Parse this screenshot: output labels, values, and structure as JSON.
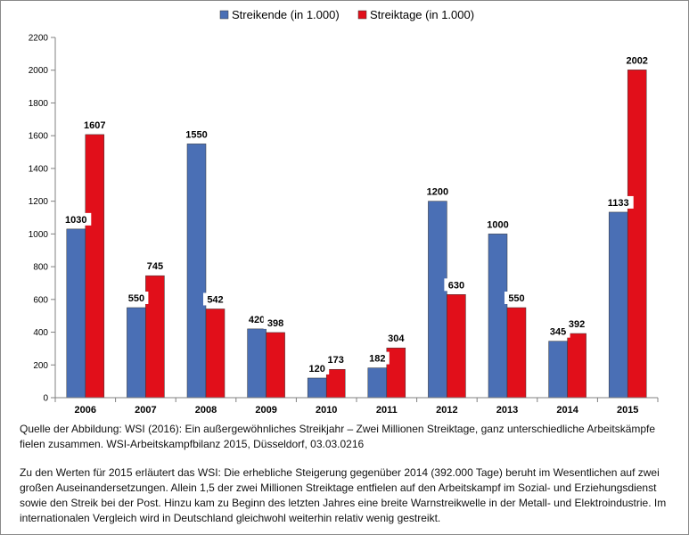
{
  "chart_data": {
    "type": "bar",
    "categories": [
      "2006",
      "2007",
      "2008",
      "2009",
      "2010",
      "2011",
      "2012",
      "2013",
      "2014",
      "2015"
    ],
    "series": [
      {
        "name": "Streikende (in 1.000)",
        "color": "#4a6fb5",
        "values": [
          1030,
          550,
          1550,
          420,
          120,
          182,
          1200,
          1000,
          345,
          1133
        ]
      },
      {
        "name": "Streiktage (in 1.000)",
        "color": "#e10f1a",
        "values": [
          1607,
          745,
          542,
          398,
          173,
          304,
          630,
          550,
          392,
          2002
        ]
      }
    ],
    "ylim": [
      0,
      2200
    ],
    "yticks": [
      0,
      200,
      400,
      600,
      800,
      1000,
      1200,
      1400,
      1600,
      1800,
      2000,
      2200
    ],
    "legend_position": "top-center"
  },
  "caption": {
    "source": "Quelle der Abbildung: WSI (2016): Ein außergewöhnliches Streikjahr – Zwei Millionen Streiktage, ganz unterschiedliche Arbeitskämpfe fielen zusammen. WSI-Arbeitskampfbilanz 2015, Düsseldorf, 03.03.0216",
    "note": "Zu den Werten für 2015 erläutert das WSI: Die erhebliche Steigerung gegenüber 2014 (392.000 Tage) beruht im Wesentlichen auf zwei großen Auseinandersetzungen. Allein 1,5 der zwei Millionen Streiktage entfielen auf den Arbeitskampf im Sozial- und Erziehungsdienst sowie den Streik bei der Post. Hinzu kam zu Beginn des letzten Jahres eine breite Warnstreikwelle in der Metall- und Elektroindustrie. Im internationalen Vergleich wird in Deutschland gleichwohl weiterhin relativ wenig gestreikt."
  }
}
